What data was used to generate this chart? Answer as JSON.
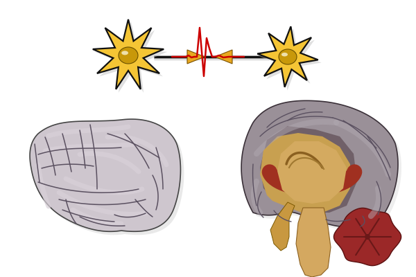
{
  "bg_color": "#ffffff",
  "neuron_body_color": "#f5c535",
  "neuron_nucleus_color": "#c8980a",
  "axon_color": "#111111",
  "signal_color": "#cc0000",
  "brain_base_color": "#c8c0c8",
  "brain_gyri_light": "#ddd5dd",
  "brain_gyri_dark": "#5a5060",
  "brain_section_outer": "#a09098",
  "brain_section_inner_dark": "#706068",
  "inner_tan": "#c8a050",
  "inner_red_border": "#a03020",
  "inner_tan_light": "#ddc080",
  "stem_color": "#d4a860",
  "cerebellum_color": "#9b2828",
  "cerebellum_lines": "#6a1818",
  "figsize": [
    6.0,
    4.0
  ],
  "dpi": 100
}
